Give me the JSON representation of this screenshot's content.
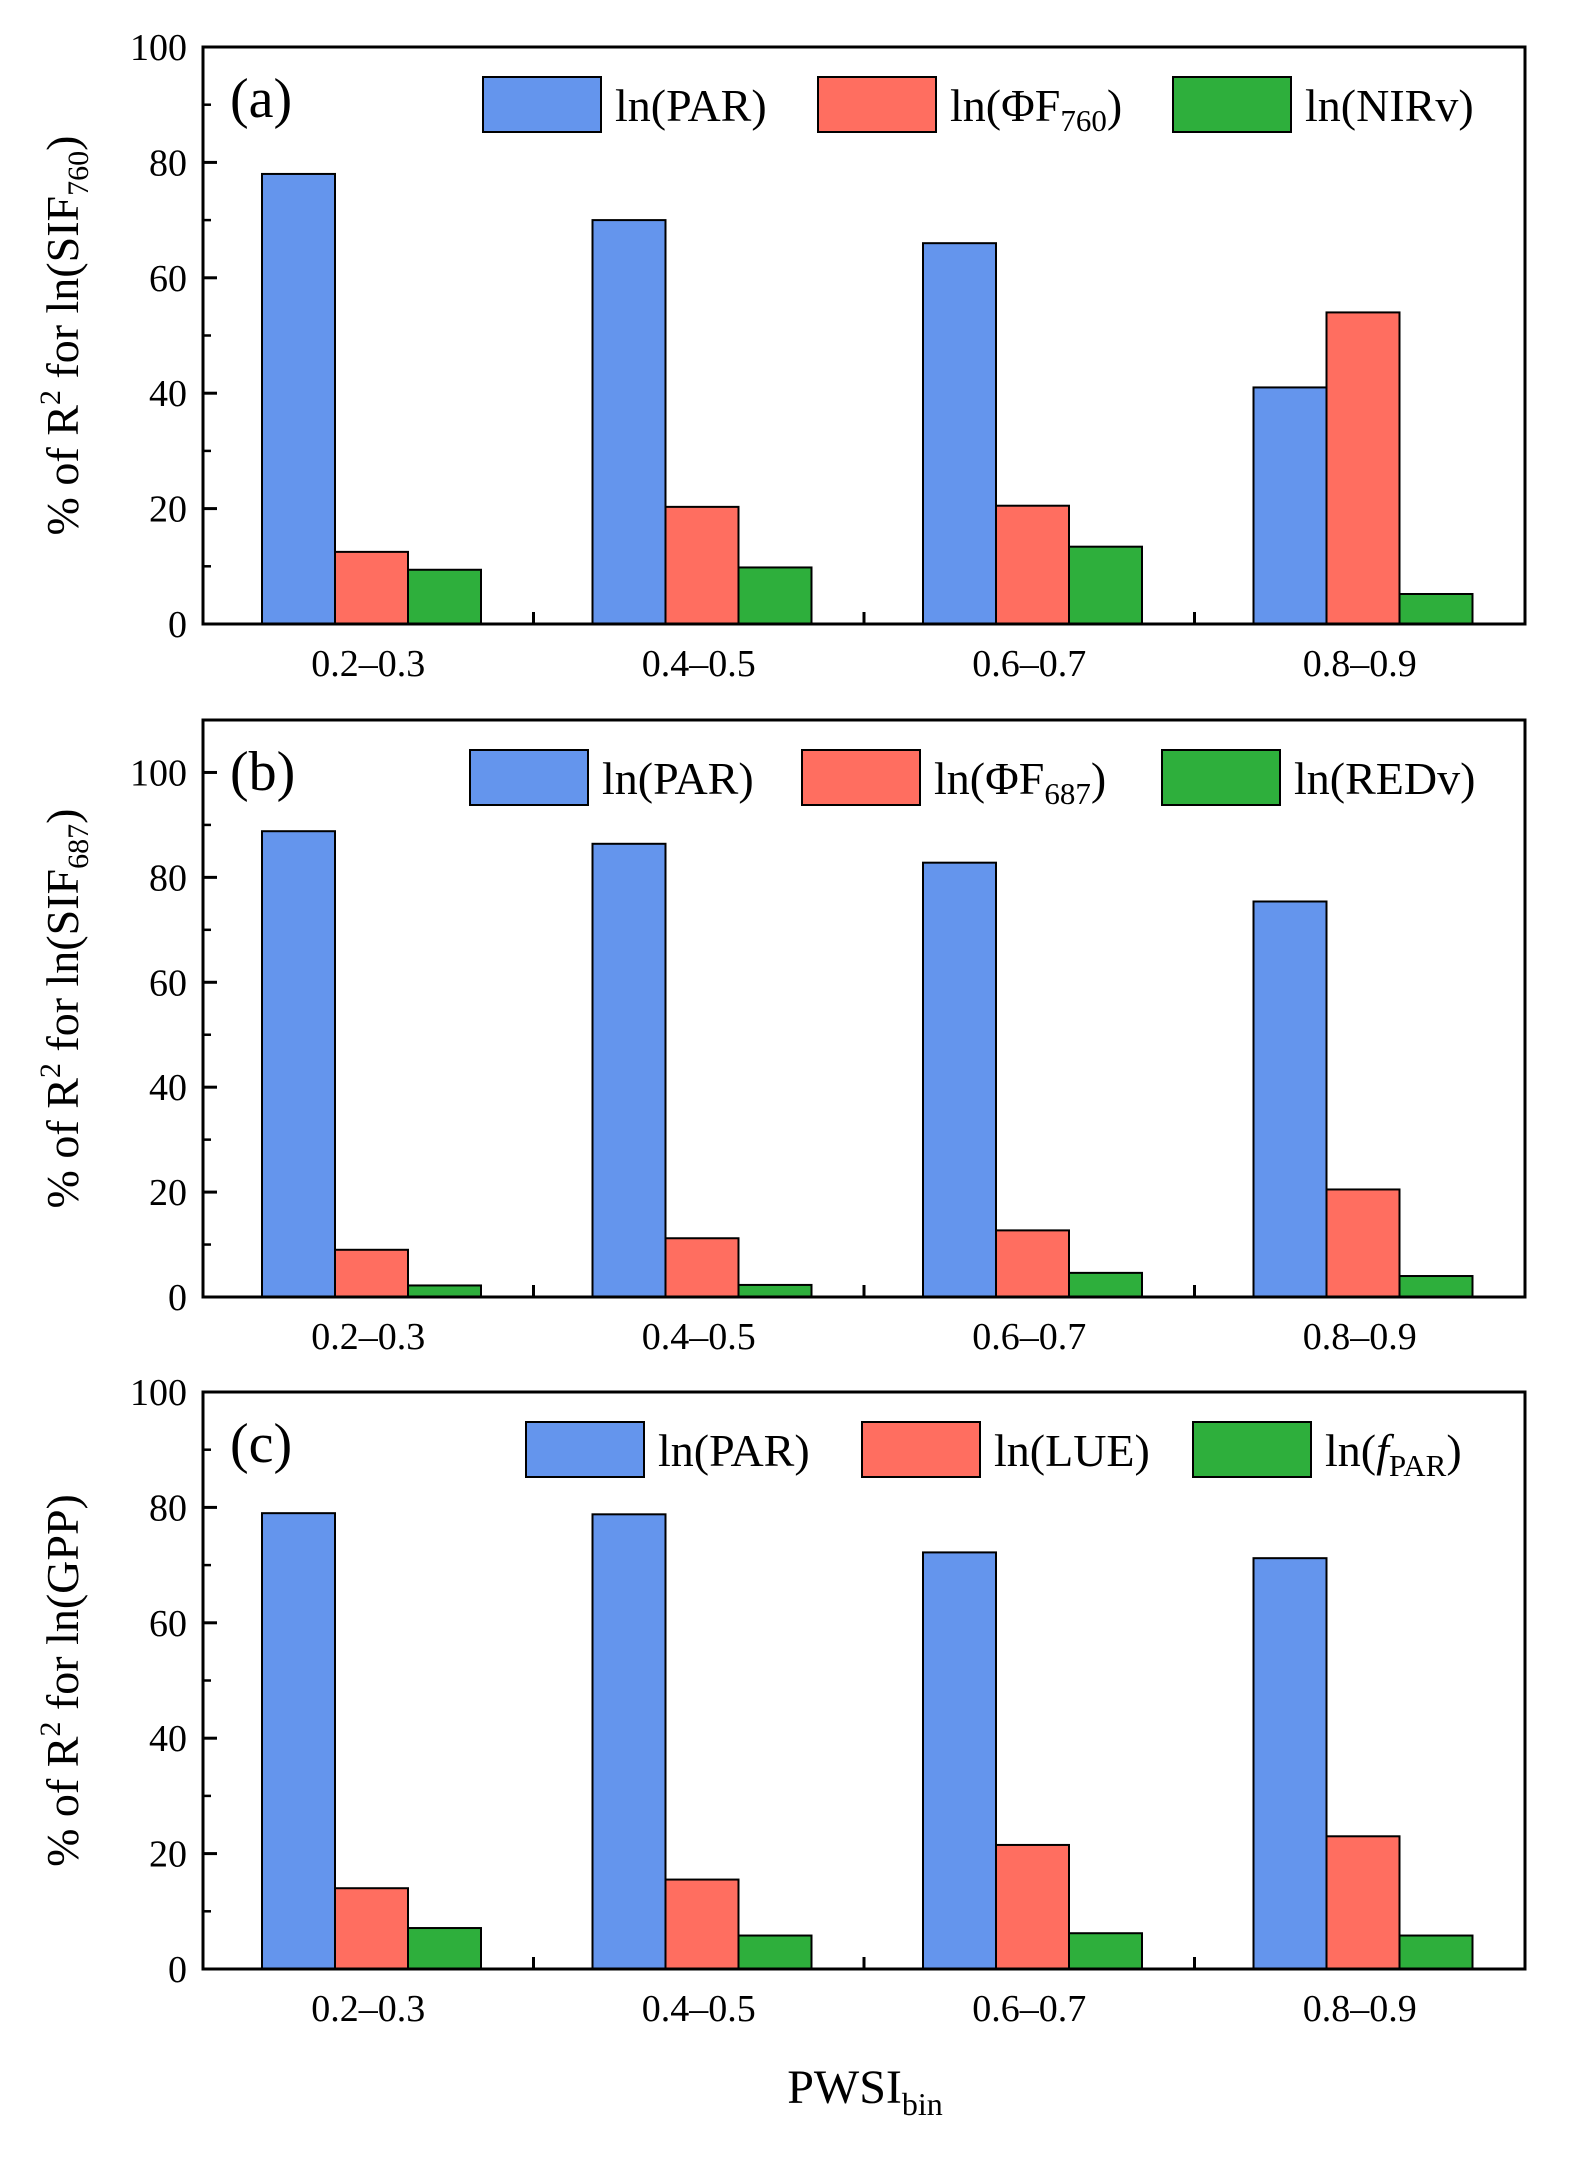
{
  "chart_data": [
    {
      "type": "bar",
      "panel_label": "(a)",
      "ylabel_pre": "% of R",
      "ylabel_sup": "2",
      "ylabel_mid": " for ln(SIF",
      "ylabel_sub": "760",
      "ylabel_post": ")",
      "ylim": [
        0,
        100
      ],
      "yticks": [
        "0",
        "20",
        "40",
        "60",
        "80",
        "100"
      ],
      "categories": [
        "0.2–0.3",
        "0.4–0.5",
        "0.6–0.7",
        "0.8–0.9"
      ],
      "series": [
        {
          "name_pre": "ln(PAR)",
          "name_sub": "",
          "name_post": "",
          "color": "#6495ED",
          "values": [
            78,
            70,
            66,
            41
          ]
        },
        {
          "name_pre": "ln(ΦF",
          "name_sub": "760",
          "name_post": ")",
          "color": "#FF6E60",
          "values": [
            12.5,
            20.3,
            20.5,
            54
          ]
        },
        {
          "name_pre": "ln(NIRv)",
          "name_sub": "",
          "name_post": "",
          "color": "#2EAF3C",
          "values": [
            9.4,
            9.8,
            13.4,
            5.2
          ]
        }
      ]
    },
    {
      "type": "bar",
      "panel_label": "(b)",
      "ylabel_pre": "% of R",
      "ylabel_sup": "2",
      "ylabel_mid": " for ln(SIF",
      "ylabel_sub": "687",
      "ylabel_post": ")",
      "ylim": [
        0,
        110
      ],
      "yticks": [
        "0",
        "20",
        "40",
        "60",
        "80",
        "100"
      ],
      "categories": [
        "0.2–0.3",
        "0.4–0.5",
        "0.6–0.7",
        "0.8–0.9"
      ],
      "series": [
        {
          "name_pre": "ln(PAR)",
          "name_sub": "",
          "name_post": "",
          "color": "#6495ED",
          "values": [
            88.8,
            86.4,
            82.8,
            75.4
          ]
        },
        {
          "name_pre": "ln(ΦF",
          "name_sub": "687",
          "name_post": ")",
          "color": "#FF6E60",
          "values": [
            9.0,
            11.2,
            12.7,
            20.5
          ]
        },
        {
          "name_pre": "ln(REDv)",
          "name_sub": "",
          "name_post": "",
          "color": "#2EAF3C",
          "values": [
            2.2,
            2.3,
            4.6,
            4.0
          ]
        }
      ]
    },
    {
      "type": "bar",
      "panel_label": "(c)",
      "ylabel_pre": "% of R",
      "ylabel_sup": "2",
      "ylabel_mid": " for ln(GPP)",
      "ylabel_sub": "",
      "ylabel_post": "",
      "ylim": [
        0,
        100
      ],
      "yticks": [
        "0",
        "20",
        "40",
        "60",
        "80",
        "100"
      ],
      "categories": [
        "0.2–0.3",
        "0.4–0.5",
        "0.6–0.7",
        "0.8–0.9"
      ],
      "series": [
        {
          "name_pre": "ln(PAR)",
          "name_sub": "",
          "name_post": "",
          "color": "#6495ED",
          "values": [
            79,
            78.8,
            72.2,
            71.2
          ]
        },
        {
          "name_pre": "ln(LUE)",
          "name_sub": "",
          "name_post": "",
          "color": "#FF6E60",
          "values": [
            14,
            15.5,
            21.5,
            23
          ]
        },
        {
          "name_pre": "ln(",
          "name_ital": "f",
          "name_sub": "PAR",
          "name_post": ")",
          "color": "#2EAF3C",
          "values": [
            7.1,
            5.8,
            6.2,
            5.8
          ]
        }
      ]
    }
  ],
  "xlabel_pre": "PWSI",
  "xlabel_sub": "bin"
}
